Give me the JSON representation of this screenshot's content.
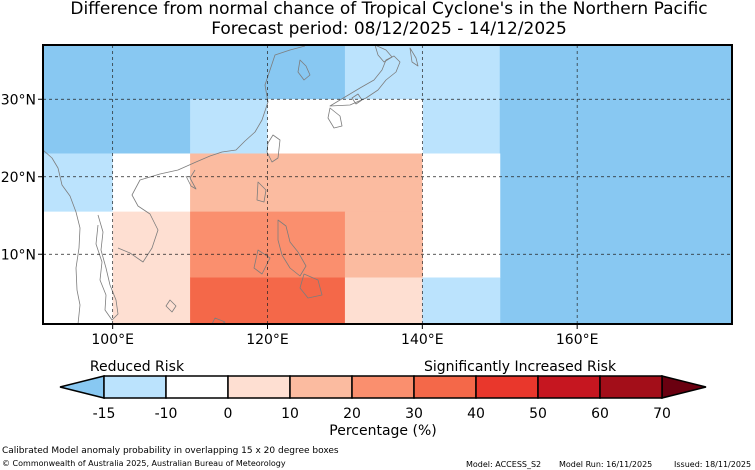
{
  "title_line1": "Difference from normal chance of Tropical Cyclone's in the Northern Pacific",
  "title_line2": "Forecast period: 08/12/2025 - 14/12/2025",
  "map": {
    "lon_range": [
      91,
      180
    ],
    "lat_range": [
      1,
      37
    ],
    "lon_ticks": [
      {
        "v": 100,
        "label": "100°E"
      },
      {
        "v": 120,
        "label": "120°E"
      },
      {
        "v": 140,
        "label": "140°E"
      },
      {
        "v": 160,
        "label": "160°E"
      }
    ],
    "lat_ticks": [
      {
        "v": 10,
        "label": "10°N"
      },
      {
        "v": 20,
        "label": "20°N"
      },
      {
        "v": 30,
        "label": "30°N"
      }
    ],
    "grid": "dotted",
    "cells": [
      {
        "lon": [
          91,
          110
        ],
        "lat": [
          23,
          37
        ],
        "bin": 0
      },
      {
        "lon": [
          110,
          130
        ],
        "lat": [
          30,
          37
        ],
        "bin": 0
      },
      {
        "lon": [
          130,
          140
        ],
        "lat": [
          30,
          37
        ],
        "bin": 1
      },
      {
        "lon": [
          140,
          150
        ],
        "lat": [
          23,
          37
        ],
        "bin": 1
      },
      {
        "lon": [
          150,
          180
        ],
        "lat": [
          1,
          37
        ],
        "bin": 0
      },
      {
        "lon": [
          110,
          120
        ],
        "lat": [
          23,
          30
        ],
        "bin": 1
      },
      {
        "lon": [
          120,
          140
        ],
        "lat": [
          23,
          30
        ],
        "bin": 2
      },
      {
        "lon": [
          91,
          100
        ],
        "lat": [
          15.5,
          23
        ],
        "bin": 1
      },
      {
        "lon": [
          100,
          110
        ],
        "lat": [
          15.5,
          23
        ],
        "bin": 2
      },
      {
        "lon": [
          110,
          140
        ],
        "lat": [
          15.5,
          23
        ],
        "bin": 4
      },
      {
        "lon": [
          140,
          150
        ],
        "lat": [
          7,
          23
        ],
        "bin": 2
      },
      {
        "lon": [
          91,
          100
        ],
        "lat": [
          1,
          15.5
        ],
        "bin": 2
      },
      {
        "lon": [
          100,
          110
        ],
        "lat": [
          1,
          15.5
        ],
        "bin": 3
      },
      {
        "lon": [
          110,
          130
        ],
        "lat": [
          7,
          15.5
        ],
        "bin": 5
      },
      {
        "lon": [
          130,
          140
        ],
        "lat": [
          7,
          15.5
        ],
        "bin": 4
      },
      {
        "lon": [
          110,
          130
        ],
        "lat": [
          1,
          7
        ],
        "bin": 6
      },
      {
        "lon": [
          130,
          140
        ],
        "lat": [
          1,
          7
        ],
        "bin": 3
      },
      {
        "lon": [
          140,
          150
        ],
        "lat": [
          1,
          7
        ],
        "bin": 1
      }
    ]
  },
  "colorbar": {
    "ticks": [
      "-15",
      "-10",
      "0",
      "10",
      "20",
      "30",
      "40",
      "50",
      "60",
      "70"
    ],
    "colors": [
      "#bbe3fd",
      "#ffffff",
      "#fedfd2",
      "#fbbba0",
      "#fa8f6e",
      "#f46849",
      "#e9372c",
      "#c61620",
      "#a30e19"
    ],
    "under_color": "#88c8f2",
    "over_color": "#6a0010",
    "label_left": "Reduced Risk",
    "label_right": "Significantly Increased Risk",
    "xlabel": "Percentage (%)"
  },
  "footer": {
    "caption": "Calibrated Model anomaly probability in overlapping 15 x 20 degree boxes",
    "copyright": "© Commonwealth of Australia 2025, Australian Bureau of Meteorology",
    "model": "Model: ACCESS_S2",
    "model_run": "Model Run: 16/11/2025",
    "issued": "Issued: 18/11/2025"
  }
}
